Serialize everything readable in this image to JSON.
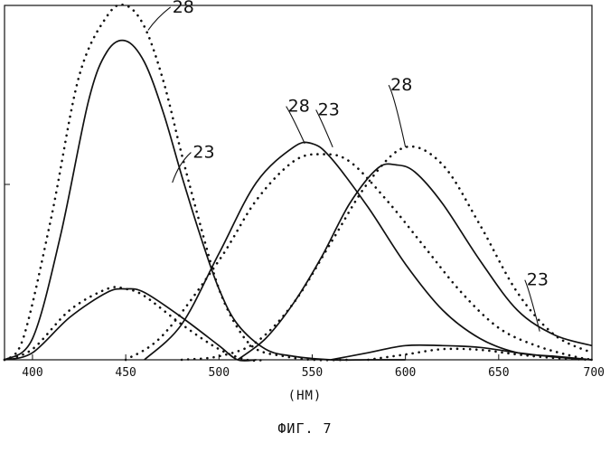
{
  "chart_data": {
    "type": "line",
    "title": "",
    "xlabel": "(НМ)",
    "ylabel": "",
    "caption": "ФИГ. 7",
    "xlim": [
      385,
      700
    ],
    "ylim": [
      0,
      1.0
    ],
    "xticks": [
      400,
      450,
      500,
      550,
      600,
      650,
      700
    ],
    "grid": false,
    "series": [
      {
        "style": "solid",
        "x": [
          385,
          400,
          415,
          430,
          440,
          450,
          460,
          470,
          480,
          490,
          500,
          510,
          525,
          540,
          560,
          580,
          600
        ],
        "y": [
          0.0,
          0.06,
          0.35,
          0.73,
          0.87,
          0.9,
          0.84,
          0.7,
          0.52,
          0.35,
          0.2,
          0.1,
          0.03,
          0.01,
          0.0,
          0.0,
          0.0
        ]
      },
      {
        "style": "dotted",
        "x": [
          385,
          395,
          410,
          425,
          440,
          450,
          460,
          470,
          480,
          490,
          500,
          510,
          520,
          535,
          550,
          570
        ],
        "y": [
          0.0,
          0.06,
          0.4,
          0.8,
          0.97,
          1.0,
          0.94,
          0.79,
          0.58,
          0.38,
          0.2,
          0.09,
          0.03,
          0.01,
          0.0,
          0.0
        ]
      },
      {
        "style": "solid",
        "x": [
          385,
          400,
          420,
          440,
          450,
          460,
          480,
          500,
          510,
          520
        ],
        "y": [
          0.0,
          0.02,
          0.12,
          0.19,
          0.2,
          0.19,
          0.12,
          0.04,
          0.0,
          0.0
        ]
      },
      {
        "style": "dotted",
        "x": [
          385,
          400,
          420,
          440,
          450,
          460,
          480,
          500,
          515,
          525
        ],
        "y": [
          0.0,
          0.03,
          0.14,
          0.2,
          0.2,
          0.18,
          0.1,
          0.03,
          0.0,
          0.0
        ]
      },
      {
        "style": "solid",
        "x": [
          460,
          480,
          500,
          520,
          540,
          550,
          560,
          580,
          600,
          620,
          640,
          660,
          680,
          700
        ],
        "y": [
          0.0,
          0.1,
          0.3,
          0.5,
          0.6,
          0.61,
          0.57,
          0.43,
          0.27,
          0.14,
          0.06,
          0.02,
          0.01,
          0.0
        ]
      },
      {
        "style": "dotted",
        "x": [
          450,
          470,
          500,
          520,
          540,
          555,
          570,
          590,
          610,
          630,
          650,
          670,
          690,
          700
        ],
        "y": [
          0.0,
          0.07,
          0.28,
          0.45,
          0.56,
          0.58,
          0.56,
          0.45,
          0.32,
          0.19,
          0.09,
          0.04,
          0.01,
          0.0
        ]
      },
      {
        "style": "solid",
        "x": [
          510,
          525,
          540,
          555,
          570,
          585,
          595,
          605,
          620,
          640,
          660,
          680,
          700
        ],
        "y": [
          0.0,
          0.06,
          0.16,
          0.29,
          0.44,
          0.54,
          0.55,
          0.53,
          0.44,
          0.28,
          0.14,
          0.07,
          0.04
        ]
      },
      {
        "style": "dotted",
        "x": [
          480,
          500,
          520,
          540,
          560,
          580,
          600,
          620,
          640,
          660,
          680,
          700
        ],
        "y": [
          0.0,
          0.01,
          0.05,
          0.16,
          0.33,
          0.5,
          0.6,
          0.55,
          0.38,
          0.19,
          0.07,
          0.02
        ]
      },
      {
        "style": "solid",
        "x": [
          560,
          580,
          600,
          620,
          640,
          660,
          680,
          700
        ],
        "y": [
          0.0,
          0.02,
          0.04,
          0.04,
          0.035,
          0.02,
          0.008,
          0.0
        ]
      },
      {
        "style": "dotted",
        "x": [
          580,
          600,
          620,
          640,
          660,
          680,
          700
        ],
        "y": [
          0.0,
          0.015,
          0.03,
          0.028,
          0.015,
          0.005,
          0.0
        ]
      }
    ],
    "annotations": [
      {
        "text": "28",
        "x": 475,
        "y": 0.98,
        "tx": 462,
        "ty": 0.93
      },
      {
        "text": "23",
        "x": 486,
        "y": 0.57,
        "tx": 475,
        "ty": 0.5
      },
      {
        "text": "28",
        "x": 537,
        "y": 0.7,
        "tx": 546,
        "ty": 0.61
      },
      {
        "text": "23",
        "x": 553,
        "y": 0.69,
        "tx": 561,
        "ty": 0.6
      },
      {
        "text": "28",
        "x": 592,
        "y": 0.76,
        "tx": 600,
        "ty": 0.6
      },
      {
        "text": "23",
        "x": 665,
        "y": 0.21,
        "tx": 672,
        "ty": 0.08
      }
    ]
  }
}
